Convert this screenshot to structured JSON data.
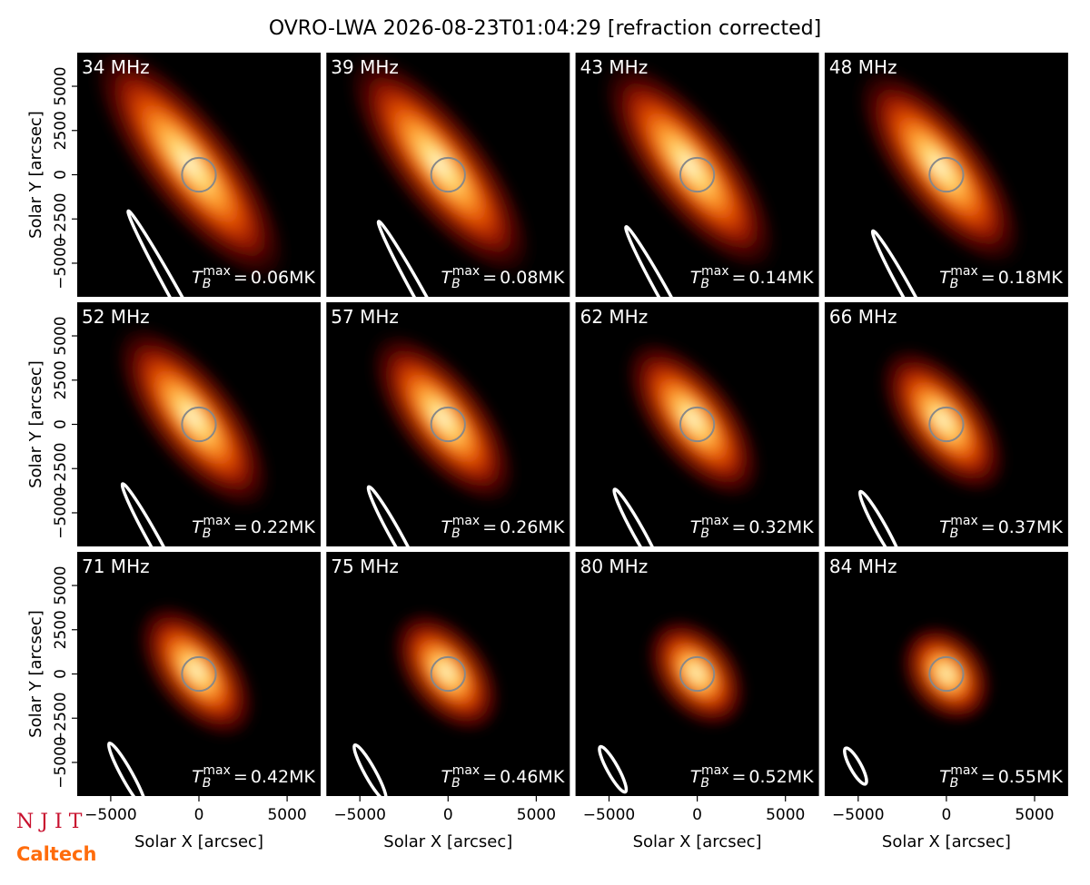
{
  "title": "OVRO-LWA 2026-08-23T01:04:29 [refraction corrected]",
  "annotation_symbol": {
    "base": "T",
    "sub": "B",
    "sup": "max",
    "relation": "="
  },
  "logos": {
    "top": "N J I T",
    "bottom": "Caltech"
  },
  "chart_data": [
    {
      "type": "image",
      "title": "34 MHz",
      "values": [
        0.06
      ],
      "value_labels": [
        "0.06MK"
      ],
      "xlim": [
        -6900,
        6900
      ],
      "ylim": [
        -6900,
        6900
      ],
      "ylabel": "Solar Y [arcsec]",
      "yticks": [
        {
          "value": -5000,
          "label": "−5000"
        },
        {
          "value": -2500,
          "label": "−2500"
        },
        0,
        2500,
        5000
      ]
    },
    {
      "type": "image",
      "title": "39 MHz",
      "values": [
        0.08
      ],
      "value_labels": [
        "0.08MK"
      ],
      "xlim": [
        -6900,
        6900
      ],
      "ylim": [
        -6900,
        6900
      ]
    },
    {
      "type": "image",
      "title": "43 MHz",
      "values": [
        0.14
      ],
      "value_labels": [
        "0.14MK"
      ],
      "xlim": [
        -6900,
        6900
      ],
      "ylim": [
        -6900,
        6900
      ]
    },
    {
      "type": "image",
      "title": "48 MHz",
      "values": [
        0.18
      ],
      "value_labels": [
        "0.18MK"
      ],
      "xlim": [
        -6900,
        6900
      ],
      "ylim": [
        -6900,
        6900
      ]
    },
    {
      "type": "image",
      "title": "52 MHz",
      "values": [
        0.22
      ],
      "value_labels": [
        "0.22MK"
      ],
      "xlim": [
        -6900,
        6900
      ],
      "ylim": [
        -6900,
        6900
      ],
      "ylabel": "Solar Y [arcsec]",
      "yticks": [
        {
          "value": -5000,
          "label": "−5000"
        },
        {
          "value": -2500,
          "label": "−2500"
        },
        0,
        2500,
        5000
      ]
    },
    {
      "type": "image",
      "title": "57 MHz",
      "values": [
        0.26
      ],
      "value_labels": [
        "0.26MK"
      ],
      "xlim": [
        -6900,
        6900
      ],
      "ylim": [
        -6900,
        6900
      ]
    },
    {
      "type": "image",
      "title": "62 MHz",
      "values": [
        0.32
      ],
      "value_labels": [
        "0.32MK"
      ],
      "xlim": [
        -6900,
        6900
      ],
      "ylim": [
        -6900,
        6900
      ]
    },
    {
      "type": "image",
      "title": "66 MHz",
      "values": [
        0.37
      ],
      "value_labels": [
        "0.37MK"
      ],
      "xlim": [
        -6900,
        6900
      ],
      "ylim": [
        -6900,
        6900
      ]
    },
    {
      "type": "image",
      "title": "71 MHz",
      "values": [
        0.42
      ],
      "value_labels": [
        "0.42MK"
      ],
      "xlim": [
        -6900,
        6900
      ],
      "ylim": [
        -6900,
        6900
      ],
      "ylabel": "Solar Y [arcsec]",
      "yticks": [
        {
          "value": -5000,
          "label": "−5000"
        },
        {
          "value": -2500,
          "label": "−2500"
        },
        0,
        2500,
        5000
      ],
      "xlabel": "Solar X [arcsec]",
      "xticks": [
        {
          "value": -5000,
          "label": "−5000"
        },
        0,
        5000
      ]
    },
    {
      "type": "image",
      "title": "75 MHz",
      "values": [
        0.46
      ],
      "value_labels": [
        "0.46MK"
      ],
      "xlim": [
        -6900,
        6900
      ],
      "ylim": [
        -6900,
        6900
      ],
      "xlabel": "Solar X [arcsec]",
      "xticks": [
        {
          "value": -5000,
          "label": "−5000"
        },
        0,
        5000
      ]
    },
    {
      "type": "image",
      "title": "80 MHz",
      "values": [
        0.52
      ],
      "value_labels": [
        "0.52MK"
      ],
      "xlim": [
        -6900,
        6900
      ],
      "ylim": [
        -6900,
        6900
      ],
      "xlabel": "Solar X [arcsec]",
      "xticks": [
        {
          "value": -5000,
          "label": "−5000"
        },
        0,
        5000
      ]
    },
    {
      "type": "image",
      "title": "84 MHz",
      "values": [
        0.55
      ],
      "value_labels": [
        "0.55MK"
      ],
      "xlim": [
        -6900,
        6900
      ],
      "ylim": [
        -6900,
        6900
      ],
      "xlabel": "Solar X [arcsec]",
      "xticks": [
        {
          "value": -5000,
          "label": "−5000"
        },
        0,
        5000
      ]
    }
  ]
}
